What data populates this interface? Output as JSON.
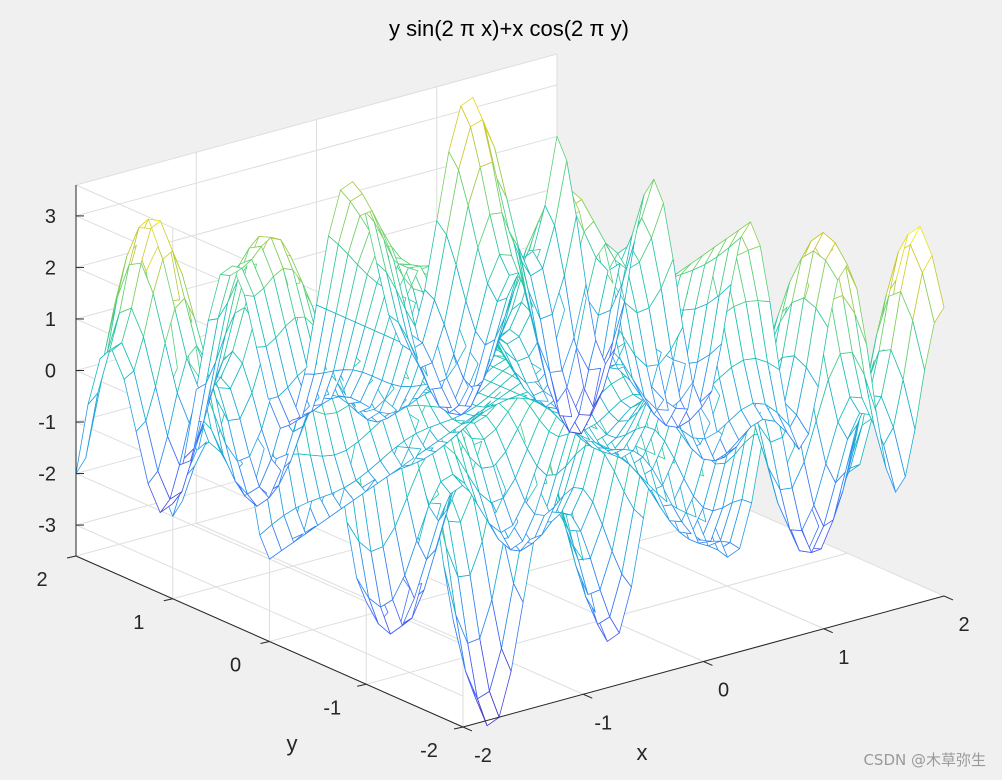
{
  "chart_data": {
    "type": "mesh",
    "title": "y sin(2 π x)+x cos(2 π y)",
    "function": "z = y*sin(2*pi*x) + x*cos(2*pi*y)",
    "xlabel": "x",
    "ylabel": "y",
    "zlabel": "",
    "xlim": [
      -2,
      2
    ],
    "ylim": [
      -2,
      2
    ],
    "zlim": [
      -3.6,
      3.6
    ],
    "xticks": [
      "-2",
      "-1",
      "0",
      "1",
      "2"
    ],
    "yticks": [
      "-2",
      "-1",
      "0",
      "1",
      "2"
    ],
    "zticks": [
      "-3",
      "-2",
      "-1",
      "0",
      "1",
      "2",
      "3"
    ],
    "grid": true,
    "colormap": "parula",
    "mesh_step": 0.1,
    "view": {
      "azimuth": -37.5,
      "elevation": 30
    }
  },
  "watermark": "CSDN @木草弥生",
  "colors": {
    "background": "#f0f0f0",
    "axes_background": "#ffffff",
    "grid": "#dedede",
    "axis_line": "#262626"
  }
}
